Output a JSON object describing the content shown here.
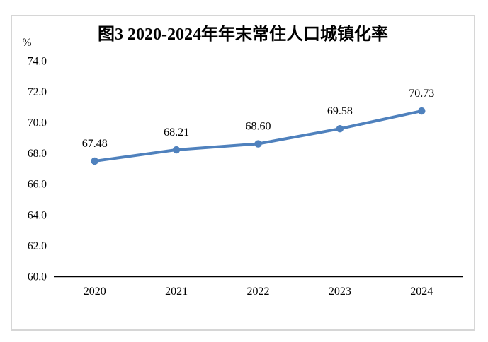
{
  "chart_data": {
    "type": "line",
    "title": "图3 2020-2024年年末常住人口城镇化率",
    "unit_label": "%",
    "categories": [
      "2020",
      "2021",
      "2022",
      "2023",
      "2024"
    ],
    "values": [
      67.48,
      68.21,
      68.6,
      69.58,
      70.73
    ],
    "data_labels": [
      "67.48",
      "68.21",
      "68.60",
      "69.58",
      "70.73"
    ],
    "ylim": [
      60.0,
      74.0
    ],
    "ytick_step": 2.0,
    "ytick_labels": [
      "60.0",
      "62.0",
      "64.0",
      "66.0",
      "68.0",
      "70.0",
      "72.0",
      "74.0"
    ],
    "xlabel": "",
    "ylabel": "%",
    "grid": false,
    "legend_position": "none",
    "line_color": "#4F81BD",
    "marker": "circle",
    "axis_color": "#000000",
    "label_color": "#000000",
    "frame_border_color": "#d6d6d6"
  }
}
